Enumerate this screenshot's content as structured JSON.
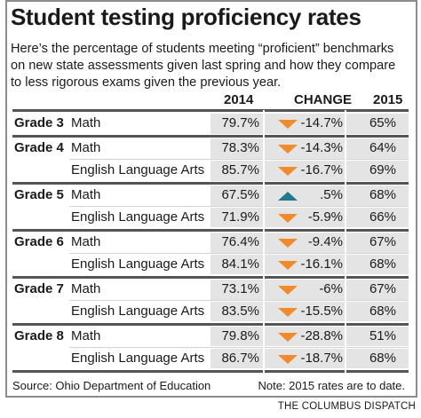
{
  "title": "Student testing proficiency rates",
  "intro_lines": [
    "Here’s the percentage of students meeting “proficient” benchmarks",
    "on new state assessments given last spring and how they compare",
    "to less rigorous exams given the previous year."
  ],
  "headers": {
    "y2014": "2014",
    "change": "CHANGE",
    "y2015": "2015"
  },
  "chart_data": {
    "type": "table",
    "title": "Student testing proficiency rates",
    "columns": [
      "2014",
      "CHANGE",
      "2015"
    ],
    "groups": [
      {
        "grade": "Grade 3",
        "rows": [
          {
            "subject": "Math",
            "y2014": "79.7%",
            "change": "-14.7%",
            "direction": "down",
            "y2015": "65%"
          }
        ]
      },
      {
        "grade": "Grade 4",
        "rows": [
          {
            "subject": "Math",
            "y2014": "78.3%",
            "change": "-14.3%",
            "direction": "down",
            "y2015": "64%"
          },
          {
            "subject": "English Language Arts",
            "y2014": "85.7%",
            "change": "-16.7%",
            "direction": "down",
            "y2015": "69%"
          }
        ]
      },
      {
        "grade": "Grade 5",
        "rows": [
          {
            "subject": "Math",
            "y2014": "67.5%",
            "change": ".5%",
            "direction": "up",
            "y2015": "68%"
          },
          {
            "subject": "English Language Arts",
            "y2014": "71.9%",
            "change": "-5.9%",
            "direction": "down",
            "y2015": "66%"
          }
        ]
      },
      {
        "grade": "Grade 6",
        "rows": [
          {
            "subject": "Math",
            "y2014": "76.4%",
            "change": "-9.4%",
            "direction": "down",
            "y2015": "67%"
          },
          {
            "subject": "English Language Arts",
            "y2014": "84.1%",
            "change": "-16.1%",
            "direction": "down",
            "y2015": "68%"
          }
        ]
      },
      {
        "grade": "Grade 7",
        "rows": [
          {
            "subject": "Math",
            "y2014": "73.1%",
            "change": "-6%",
            "direction": "down",
            "y2015": "67%"
          },
          {
            "subject": "English Language Arts",
            "y2014": "83.5%",
            "change": "-15.5%",
            "direction": "down",
            "y2015": "68%"
          }
        ]
      },
      {
        "grade": "Grade 8",
        "rows": [
          {
            "subject": "Math",
            "y2014": "79.8%",
            "change": "-28.8%",
            "direction": "down",
            "y2015": "51%"
          },
          {
            "subject": "English Language Arts",
            "y2014": "86.7%",
            "change": "-18.7%",
            "direction": "down",
            "y2015": "68%"
          }
        ]
      }
    ]
  },
  "colors": {
    "down_arrow": "#f08a2c",
    "up_arrow": "#1f7a8c",
    "shade": "#e4e4e4",
    "rule": "#555555"
  },
  "source": "Source: Ohio Department of Education",
  "note": "Note: 2015 rates are to date.",
  "credit": "THE COLUMBUS DISPATCH"
}
